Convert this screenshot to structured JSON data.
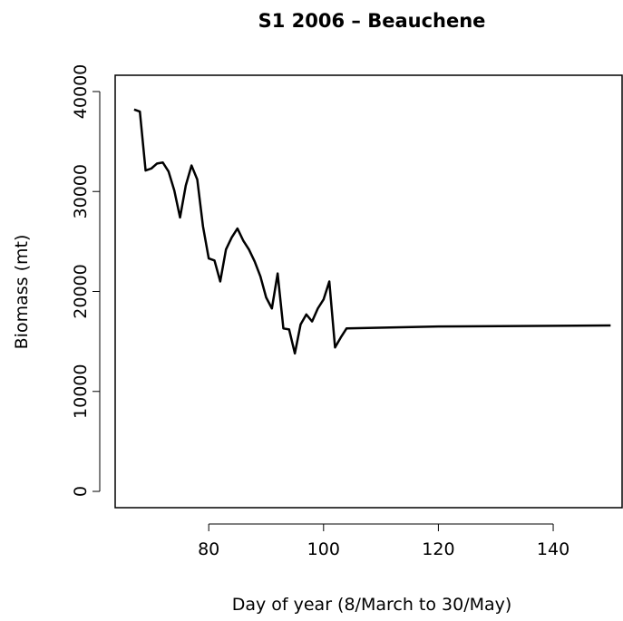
{
  "chart_data": {
    "type": "line",
    "title": "S1 2006 – Beauchene",
    "x_label": "Day of year (8/March to 30/May)",
    "y_label": "Biomass (mt)",
    "x": [
      67,
      68,
      69,
      70,
      71,
      72,
      73,
      74,
      75,
      76,
      77,
      78,
      79,
      80,
      81,
      82,
      83,
      84,
      85,
      86,
      87,
      88,
      89,
      90,
      91,
      92,
      93,
      94,
      95,
      96,
      97,
      98,
      99,
      100,
      101,
      102,
      103,
      104,
      120,
      150
    ],
    "series": [
      {
        "name": "Biomass",
        "color": "#000000",
        "values": [
          38200,
          38000,
          32100,
          32300,
          32800,
          32900,
          32000,
          30100,
          27400,
          30600,
          32600,
          31200,
          26500,
          23300,
          23100,
          21000,
          24200,
          25400,
          26300,
          25100,
          24200,
          23000,
          21500,
          19400,
          18300,
          21800,
          16300,
          16200,
          13800,
          16700,
          17700,
          17000,
          18300,
          19200,
          21000,
          14400,
          15400,
          16300,
          16500,
          16600
        ]
      }
    ],
    "xlim": [
      63.7,
      152
    ],
    "ylim": [
      -1630,
      41630
    ],
    "xticks": [
      80,
      100,
      120,
      140
    ],
    "yticks": [
      0,
      10000,
      20000,
      30000,
      40000
    ]
  }
}
